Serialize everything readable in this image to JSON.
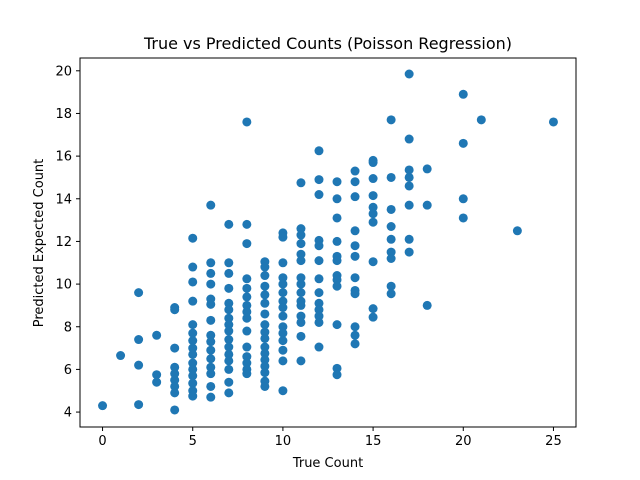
{
  "chart_data": {
    "type": "scatter",
    "title": "True vs Predicted Counts (Poisson Regression)",
    "xlabel": "True Count",
    "ylabel": "Predicted Expected Count",
    "xlim": [
      -1.25,
      26.25
    ],
    "ylim": [
      3.3,
      20.6
    ],
    "xticks": [
      "0",
      "5",
      "10",
      "15",
      "20",
      "25"
    ],
    "yticks": [
      "4",
      "6",
      "8",
      "10",
      "12",
      "14",
      "16",
      "18",
      "20"
    ],
    "grid": false,
    "legend": "none",
    "marker_color": "#1f77b4",
    "series": [
      {
        "points": [
          [
            0,
            4.3
          ],
          [
            1,
            6.65
          ],
          [
            2,
            9.6
          ],
          [
            2,
            7.4
          ],
          [
            2,
            6.2
          ],
          [
            2,
            4.35
          ],
          [
            3,
            7.6
          ],
          [
            3,
            5.75
          ],
          [
            3,
            5.4
          ],
          [
            4,
            8.9
          ],
          [
            4,
            8.8
          ],
          [
            4,
            7.0
          ],
          [
            4,
            6.1
          ],
          [
            4,
            5.8
          ],
          [
            4,
            5.5
          ],
          [
            4,
            5.2
          ],
          [
            4,
            4.9
          ],
          [
            4,
            4.1
          ],
          [
            5,
            12.15
          ],
          [
            5,
            10.8
          ],
          [
            5,
            10.1
          ],
          [
            5,
            9.2
          ],
          [
            5,
            8.1
          ],
          [
            5,
            7.7
          ],
          [
            5,
            7.35
          ],
          [
            5,
            7.0
          ],
          [
            5,
            6.7
          ],
          [
            5,
            6.3
          ],
          [
            5,
            6.0
          ],
          [
            5,
            5.7
          ],
          [
            5,
            5.35
          ],
          [
            5,
            5.0
          ],
          [
            5,
            4.75
          ],
          [
            6,
            13.7
          ],
          [
            6,
            11.0
          ],
          [
            6,
            10.5
          ],
          [
            6,
            10.0
          ],
          [
            6,
            9.3
          ],
          [
            6,
            9.05
          ],
          [
            6,
            8.3
          ],
          [
            6,
            7.6
          ],
          [
            6,
            7.3
          ],
          [
            6,
            6.9
          ],
          [
            6,
            6.5
          ],
          [
            6,
            6.1
          ],
          [
            6,
            5.8
          ],
          [
            6,
            5.2
          ],
          [
            6,
            4.7
          ],
          [
            7,
            12.8
          ],
          [
            7,
            11.0
          ],
          [
            7,
            10.5
          ],
          [
            7,
            9.8
          ],
          [
            7,
            9.1
          ],
          [
            7,
            8.8
          ],
          [
            7,
            8.4
          ],
          [
            7,
            8.1
          ],
          [
            7,
            7.8
          ],
          [
            7,
            7.4
          ],
          [
            7,
            7.05
          ],
          [
            7,
            6.7
          ],
          [
            7,
            6.4
          ],
          [
            7,
            6.0
          ],
          [
            7,
            5.4
          ],
          [
            7,
            4.9
          ],
          [
            8,
            17.6
          ],
          [
            8,
            12.8
          ],
          [
            8,
            11.9
          ],
          [
            8,
            10.25
          ],
          [
            8,
            9.8
          ],
          [
            8,
            9.4
          ],
          [
            8,
            9.0
          ],
          [
            8,
            8.7
          ],
          [
            8,
            8.4
          ],
          [
            8,
            7.8
          ],
          [
            8,
            7.05
          ],
          [
            8,
            6.6
          ],
          [
            8,
            6.3
          ],
          [
            8,
            6.0
          ],
          [
            8,
            5.8
          ],
          [
            9,
            11.05
          ],
          [
            9,
            10.8
          ],
          [
            9,
            10.4
          ],
          [
            9,
            9.9
          ],
          [
            9,
            9.5
          ],
          [
            9,
            9.1
          ],
          [
            9,
            8.6
          ],
          [
            9,
            8.1
          ],
          [
            9,
            7.75
          ],
          [
            9,
            7.45
          ],
          [
            9,
            7.05
          ],
          [
            9,
            6.75
          ],
          [
            9,
            6.45
          ],
          [
            9,
            6.15
          ],
          [
            9,
            5.85
          ],
          [
            9,
            5.45
          ],
          [
            9,
            5.2
          ],
          [
            10,
            12.4
          ],
          [
            10,
            12.2
          ],
          [
            10,
            11.0
          ],
          [
            10,
            10.3
          ],
          [
            10,
            10.0
          ],
          [
            10,
            9.6
          ],
          [
            10,
            9.2
          ],
          [
            10,
            8.9
          ],
          [
            10,
            8.5
          ],
          [
            10,
            8.0
          ],
          [
            10,
            7.7
          ],
          [
            10,
            7.35
          ],
          [
            10,
            6.9
          ],
          [
            10,
            6.4
          ],
          [
            10,
            5.0
          ],
          [
            11,
            14.75
          ],
          [
            11,
            12.6
          ],
          [
            11,
            12.3
          ],
          [
            11,
            11.9
          ],
          [
            11,
            11.4
          ],
          [
            11,
            11.1
          ],
          [
            11,
            10.3
          ],
          [
            11,
            10.0
          ],
          [
            11,
            9.6
          ],
          [
            11,
            9.2
          ],
          [
            11,
            9.0
          ],
          [
            11,
            8.5
          ],
          [
            11,
            8.2
          ],
          [
            11,
            7.55
          ],
          [
            11,
            6.4
          ],
          [
            12,
            16.25
          ],
          [
            12,
            14.9
          ],
          [
            12,
            14.2
          ],
          [
            12,
            12.05
          ],
          [
            12,
            11.8
          ],
          [
            12,
            11.1
          ],
          [
            12,
            10.25
          ],
          [
            12,
            9.6
          ],
          [
            12,
            9.1
          ],
          [
            12,
            8.8
          ],
          [
            12,
            8.5
          ],
          [
            12,
            8.2
          ],
          [
            12,
            7.05
          ],
          [
            13,
            14.8
          ],
          [
            13,
            14.0
          ],
          [
            13,
            13.1
          ],
          [
            13,
            12.0
          ],
          [
            13,
            11.3
          ],
          [
            13,
            11.1
          ],
          [
            13,
            10.4
          ],
          [
            13,
            10.2
          ],
          [
            13,
            9.9
          ],
          [
            13,
            8.1
          ],
          [
            13,
            6.05
          ],
          [
            13,
            5.75
          ],
          [
            14,
            15.3
          ],
          [
            14,
            14.8
          ],
          [
            14,
            14.1
          ],
          [
            14,
            12.5
          ],
          [
            14,
            11.8
          ],
          [
            14,
            11.3
          ],
          [
            14,
            10.3
          ],
          [
            14,
            9.7
          ],
          [
            14,
            9.55
          ],
          [
            14,
            8.0
          ],
          [
            14,
            7.6
          ],
          [
            14,
            7.2
          ],
          [
            15,
            15.8
          ],
          [
            15,
            15.7
          ],
          [
            15,
            14.95
          ],
          [
            15,
            14.15
          ],
          [
            15,
            13.6
          ],
          [
            15,
            13.3
          ],
          [
            15,
            12.9
          ],
          [
            15,
            11.05
          ],
          [
            15,
            8.85
          ],
          [
            15,
            8.45
          ],
          [
            16,
            17.7
          ],
          [
            16,
            15.0
          ],
          [
            16,
            13.5
          ],
          [
            16,
            12.7
          ],
          [
            16,
            12.1
          ],
          [
            16,
            11.5
          ],
          [
            16,
            11.2
          ],
          [
            16,
            9.9
          ],
          [
            16,
            9.55
          ],
          [
            17,
            19.85
          ],
          [
            17,
            16.8
          ],
          [
            17,
            15.35
          ],
          [
            17,
            15.0
          ],
          [
            17,
            14.6
          ],
          [
            17,
            13.7
          ],
          [
            17,
            12.1
          ],
          [
            17,
            11.5
          ],
          [
            18,
            15.4
          ],
          [
            18,
            13.7
          ],
          [
            18,
            9.0
          ],
          [
            20,
            18.9
          ],
          [
            20,
            16.6
          ],
          [
            20,
            14.0
          ],
          [
            20,
            13.1
          ],
          [
            21,
            17.7
          ],
          [
            23,
            12.5
          ],
          [
            25,
            17.6
          ]
        ]
      }
    ]
  }
}
